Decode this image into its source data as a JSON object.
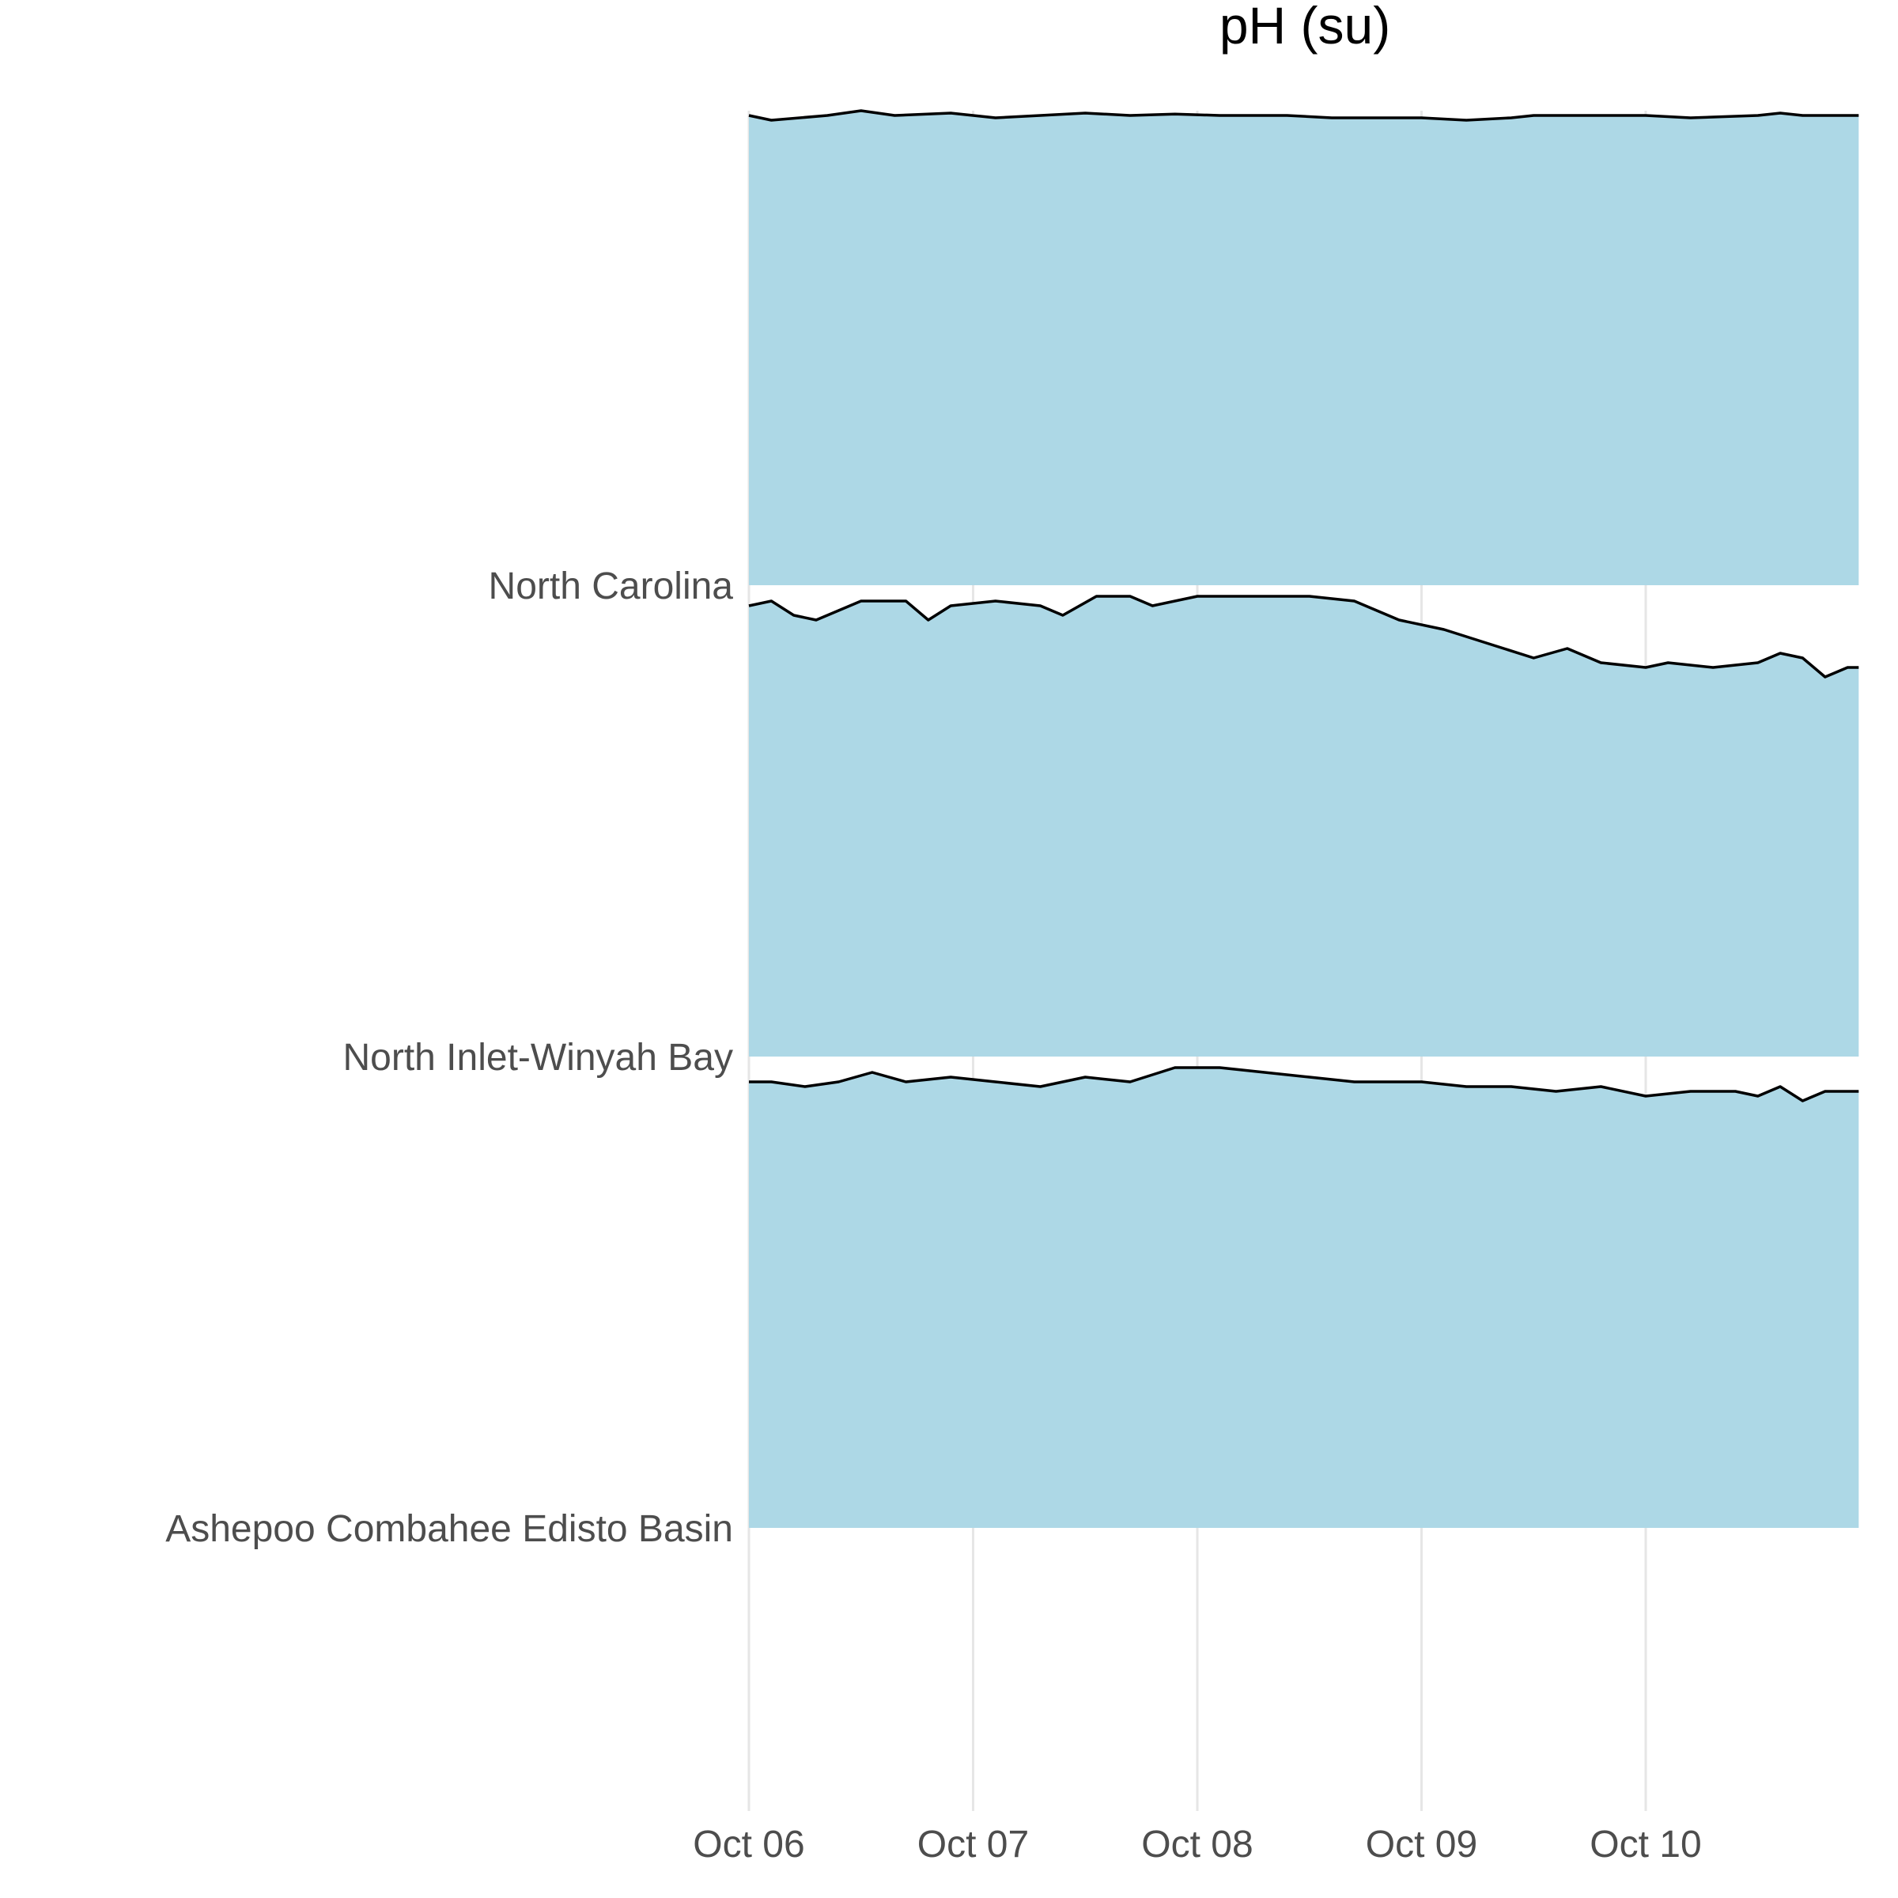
{
  "chart_data": {
    "type": "area",
    "subtype": "ridgeline",
    "title": "pH (su)",
    "xlabel": "",
    "ylabel": "",
    "fill_color": "#add8e6",
    "line_color": "#000000",
    "grid": "vertical",
    "x_ticks": [
      "Oct 06",
      "Oct 07",
      "Oct 08",
      "Oct 09",
      "Oct 10"
    ],
    "x_range_days": [
      0,
      4.95
    ],
    "series": [
      {
        "name": "North Carolina",
        "points": [
          [
            0,
            0.99
          ],
          [
            0.1,
            0.98
          ],
          [
            0.35,
            0.99
          ],
          [
            0.5,
            1.0
          ],
          [
            0.65,
            0.99
          ],
          [
            0.9,
            0.995
          ],
          [
            1.1,
            0.985
          ],
          [
            1.3,
            0.99
          ],
          [
            1.5,
            0.995
          ],
          [
            1.7,
            0.99
          ],
          [
            1.9,
            0.993
          ],
          [
            2.1,
            0.99
          ],
          [
            2.4,
            0.99
          ],
          [
            2.6,
            0.985
          ],
          [
            2.8,
            0.985
          ],
          [
            3.0,
            0.985
          ],
          [
            3.2,
            0.98
          ],
          [
            3.4,
            0.985
          ],
          [
            3.5,
            0.99
          ],
          [
            3.7,
            0.99
          ],
          [
            4.0,
            0.99
          ],
          [
            4.2,
            0.985
          ],
          [
            4.5,
            0.99
          ],
          [
            4.6,
            0.995
          ],
          [
            4.7,
            0.99
          ],
          [
            4.95,
            0.99
          ]
        ]
      },
      {
        "name": "North Inlet-Winyah Bay",
        "points": [
          [
            0,
            0.95
          ],
          [
            0.1,
            0.96
          ],
          [
            0.2,
            0.93
          ],
          [
            0.3,
            0.92
          ],
          [
            0.4,
            0.94
          ],
          [
            0.5,
            0.96
          ],
          [
            0.7,
            0.96
          ],
          [
            0.8,
            0.92
          ],
          [
            0.9,
            0.95
          ],
          [
            1.1,
            0.96
          ],
          [
            1.3,
            0.95
          ],
          [
            1.4,
            0.93
          ],
          [
            1.55,
            0.97
          ],
          [
            1.7,
            0.97
          ],
          [
            1.8,
            0.95
          ],
          [
            2.0,
            0.97
          ],
          [
            2.2,
            0.97
          ],
          [
            2.5,
            0.97
          ],
          [
            2.7,
            0.96
          ],
          [
            2.9,
            0.92
          ],
          [
            3.1,
            0.9
          ],
          [
            3.3,
            0.87
          ],
          [
            3.5,
            0.84
          ],
          [
            3.65,
            0.86
          ],
          [
            3.8,
            0.83
          ],
          [
            4.0,
            0.82
          ],
          [
            4.1,
            0.83
          ],
          [
            4.3,
            0.82
          ],
          [
            4.5,
            0.83
          ],
          [
            4.6,
            0.85
          ],
          [
            4.7,
            0.84
          ],
          [
            4.8,
            0.8
          ],
          [
            4.9,
            0.82
          ],
          [
            4.95,
            0.82
          ]
        ]
      },
      {
        "name": "Ashepoo Combahee Edisto Basin",
        "points": [
          [
            0,
            0.94
          ],
          [
            0.1,
            0.94
          ],
          [
            0.25,
            0.93
          ],
          [
            0.4,
            0.94
          ],
          [
            0.55,
            0.96
          ],
          [
            0.7,
            0.94
          ],
          [
            0.9,
            0.95
          ],
          [
            1.1,
            0.94
          ],
          [
            1.3,
            0.93
          ],
          [
            1.5,
            0.95
          ],
          [
            1.7,
            0.94
          ],
          [
            1.9,
            0.97
          ],
          [
            2.1,
            0.97
          ],
          [
            2.3,
            0.96
          ],
          [
            2.5,
            0.95
          ],
          [
            2.7,
            0.94
          ],
          [
            3.0,
            0.94
          ],
          [
            3.2,
            0.93
          ],
          [
            3.4,
            0.93
          ],
          [
            3.6,
            0.92
          ],
          [
            3.8,
            0.93
          ],
          [
            4.0,
            0.91
          ],
          [
            4.2,
            0.92
          ],
          [
            4.4,
            0.92
          ],
          [
            4.5,
            0.91
          ],
          [
            4.6,
            0.93
          ],
          [
            4.7,
            0.9
          ],
          [
            4.8,
            0.92
          ],
          [
            4.95,
            0.92
          ]
        ]
      }
    ]
  }
}
